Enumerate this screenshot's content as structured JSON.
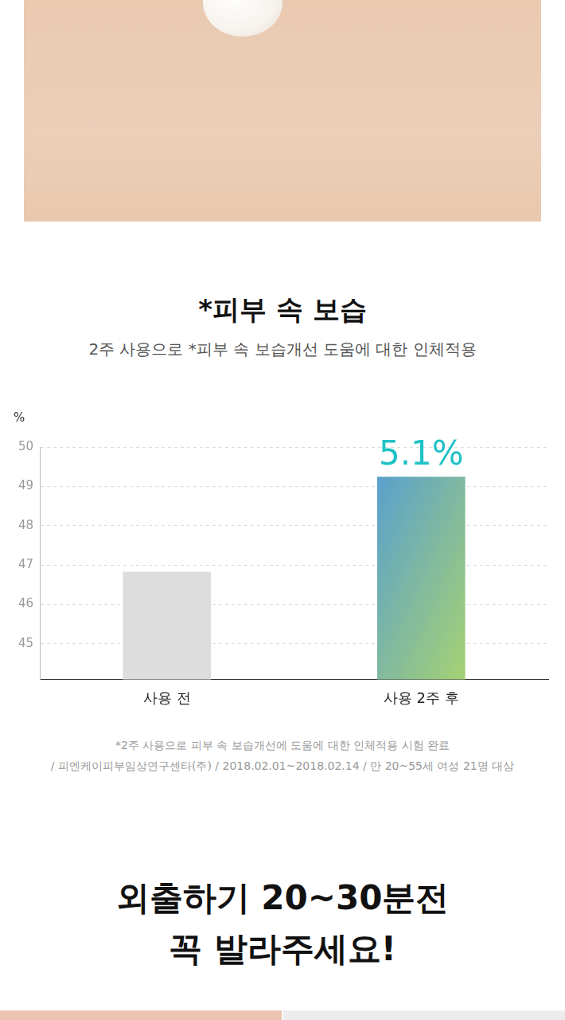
{
  "chart_data": {
    "type": "bar",
    "title": "*피부 속 보습",
    "subtitle": "2주 사용으로 *피부 속 보습개선 도움에 대한 인체적용",
    "ylabel": "%",
    "annotation": "5.1%",
    "categories": [
      "사용 전",
      "사용 2주 후"
    ],
    "values": [
      46.825,
      49.238
    ],
    "colors": [
      "#dddddd",
      "#3a8cf2"
    ],
    "data_labels": true,
    "ylim": [
      44.1,
      50
    ],
    "yticks": [
      45,
      46,
      47,
      48,
      49,
      50
    ],
    "grid": true,
    "footnote": [
      "*2주 사용으로 피부 속 보습개선에 도움에 대한 인체적용 시험 완료",
      "/ 피엔케이피부임상연구센타(주) / 2018.02.01~2018.02.14 / 만 20~55세 여성 21명 대상"
    ]
  },
  "headline": [
    "외출하기 20~30분전",
    "꼭 발라주세요!"
  ]
}
